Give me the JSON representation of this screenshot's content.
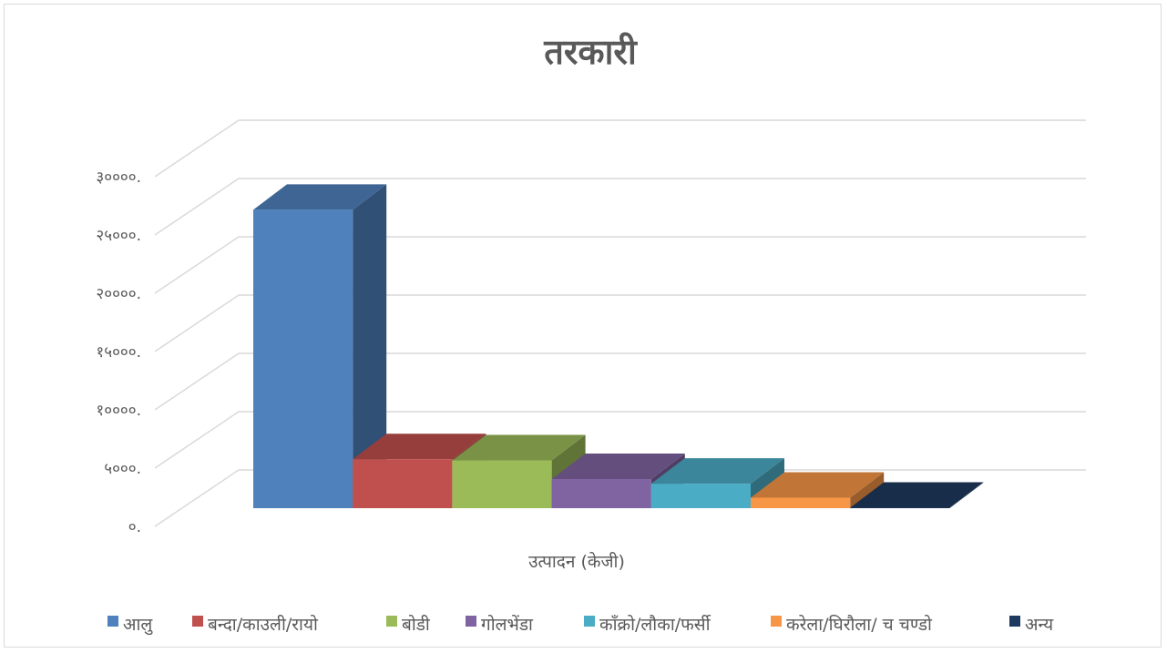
{
  "chart_data": {
    "type": "bar",
    "title": "तरकारी",
    "xlabel": "उत्पादन  (केजी)",
    "ylabel": "",
    "ylim": [
      0,
      30000
    ],
    "y_ticks": [
      "०.",
      "५०००.",
      "१००००.",
      "१५०००.",
      "२००००.",
      "२५०००.",
      "३००००."
    ],
    "y_tick_values": [
      0,
      5000,
      10000,
      15000,
      20000,
      25000,
      30000
    ],
    "categories": [
      "उत्पादन  (केजी)"
    ],
    "legend_position": "bottom",
    "grid": true,
    "three_d": true,
    "series": [
      {
        "name": "आलु",
        "values": [
          25600
        ],
        "color": "#4f81bd"
      },
      {
        "name": "बन्दा/काउली/रायो",
        "values": [
          4200
        ],
        "color": "#c0504d"
      },
      {
        "name": "बोडी",
        "values": [
          4100
        ],
        "color": "#9bbb59"
      },
      {
        "name": "गोलभेंडा",
        "values": [
          2500
        ],
        "color": "#8064a2"
      },
      {
        "name": "काँक्रो/लौका/फर्सी",
        "values": [
          2100
        ],
        "color": "#4bacc6"
      },
      {
        "name": "करेला/घिरौला/ च चण्डो",
        "values": [
          900
        ],
        "color": "#f79646"
      },
      {
        "name": "अन्य",
        "values": [
          30
        ],
        "color": "#1f3a5f"
      }
    ]
  }
}
